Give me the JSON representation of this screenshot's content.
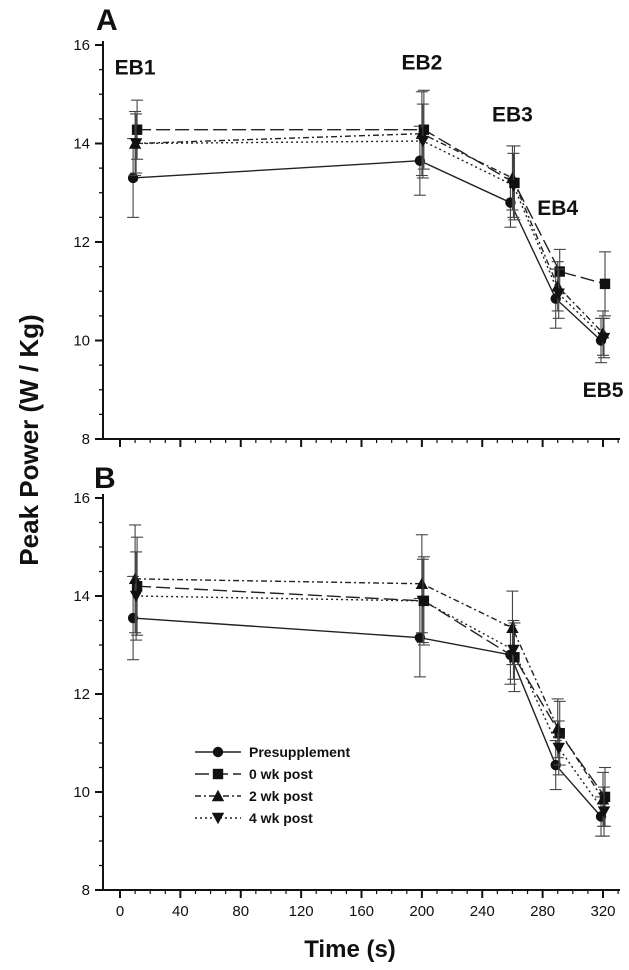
{
  "figure": {
    "ylabel": "Peak Power (W / Kg)",
    "xlabel": "Time (s)"
  },
  "chart_data": [
    {
      "type": "line",
      "panel_label": "A",
      "x": [
        10,
        200,
        260,
        290,
        320
      ],
      "xlim": [
        0,
        330
      ],
      "ylim": [
        8,
        16
      ],
      "xticks": [
        0,
        40,
        80,
        120,
        160,
        200,
        240,
        280,
        320
      ],
      "yticks": [
        8,
        10,
        12,
        14,
        16
      ],
      "annotations": [
        {
          "text": "EB1",
          "x": 10,
          "y": 15.4
        },
        {
          "text": "EB2",
          "x": 200,
          "y": 15.5
        },
        {
          "text": "EB3",
          "x": 260,
          "y": 14.45
        },
        {
          "text": "EB4",
          "x": 290,
          "y": 12.55
        },
        {
          "text": "EB5",
          "x": 320,
          "y": 8.85
        }
      ],
      "series": [
        {
          "name": "Presupplement",
          "marker": "circle",
          "dash": "",
          "values": [
            13.3,
            13.65,
            12.8,
            10.85,
            10.0
          ],
          "errors": [
            0.8,
            0.7,
            0.5,
            0.6,
            0.45
          ]
        },
        {
          "name": "0 wk post",
          "marker": "square",
          "dash": "14 5",
          "values": [
            14.28,
            14.28,
            13.2,
            11.4,
            11.15
          ],
          "errors": [
            0.6,
            0.8,
            0.75,
            0.45,
            0.65
          ]
        },
        {
          "name": "2 wk post",
          "marker": "triangle-up",
          "dash": "6 3 2 3",
          "values": [
            14.0,
            14.2,
            13.3,
            11.1,
            10.15
          ],
          "errors": [
            0.65,
            0.85,
            0.65,
            0.5,
            0.45
          ]
        },
        {
          "name": "4 wk post",
          "marker": "triangle-down",
          "dash": "2 3",
          "values": [
            14.0,
            14.05,
            13.15,
            10.95,
            10.05
          ],
          "errors": [
            0.6,
            0.75,
            0.65,
            0.5,
            0.4
          ]
        }
      ]
    },
    {
      "type": "line",
      "panel_label": "B",
      "x": [
        10,
        200,
        260,
        290,
        320
      ],
      "xlim": [
        0,
        330
      ],
      "ylim": [
        8,
        16
      ],
      "xticks": [
        0,
        40,
        80,
        120,
        160,
        200,
        240,
        280,
        320
      ],
      "xticklabels": [
        "0",
        "40",
        "80",
        "120",
        "160",
        "200",
        "240",
        "280",
        "320"
      ],
      "yticks": [
        8,
        10,
        12,
        14,
        16
      ],
      "legend": {
        "position": "lower-left"
      },
      "series": [
        {
          "name": "Presupplement",
          "marker": "circle",
          "dash": "",
          "values": [
            13.55,
            13.15,
            12.8,
            10.55,
            9.5
          ],
          "errors": [
            0.85,
            0.8,
            0.6,
            0.5,
            0.4
          ]
        },
        {
          "name": "0 wk post",
          "marker": "square",
          "dash": "14 5",
          "values": [
            14.2,
            13.9,
            12.75,
            11.2,
            9.9
          ],
          "errors": [
            1.0,
            0.9,
            0.7,
            0.65,
            0.6
          ]
        },
        {
          "name": "2 wk post",
          "marker": "triangle-up",
          "dash": "6 3 2 3",
          "values": [
            14.35,
            14.25,
            13.35,
            11.3,
            9.85
          ],
          "errors": [
            1.1,
            1.0,
            0.75,
            0.6,
            0.55
          ]
        },
        {
          "name": "4 wk post",
          "marker": "triangle-down",
          "dash": "2 3",
          "values": [
            14.0,
            13.9,
            12.9,
            10.9,
            9.6
          ],
          "errors": [
            0.9,
            0.85,
            0.6,
            0.55,
            0.5
          ]
        }
      ]
    }
  ]
}
